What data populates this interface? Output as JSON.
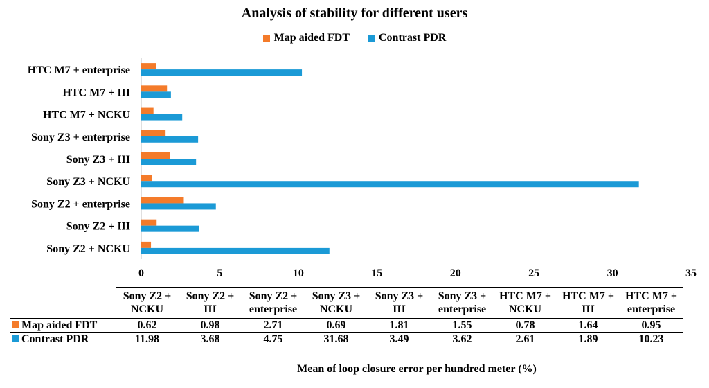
{
  "chart_data": {
    "type": "bar",
    "orientation": "horizontal",
    "title": "Analysis of stability for different users",
    "xlabel": "Mean of loop closure error per  hundred meter (%)",
    "ylabel": "",
    "xlim": [
      0,
      35
    ],
    "xticks": [
      0,
      5,
      10,
      15,
      20,
      25,
      30,
      35
    ],
    "grid": false,
    "legend_position": "top",
    "categories": [
      "Sony Z2 + NCKU",
      "Sony Z2 + III",
      "Sony Z2 + enterprise",
      "Sony Z3 + NCKU",
      "Sony Z3 + III",
      "Sony Z3 + enterprise",
      "HTC M7 + NCKU",
      "HTC M7 + III",
      "HTC M7 + enterprise"
    ],
    "table_headers": [
      [
        "Sony Z2 +",
        "NCKU"
      ],
      [
        "Sony Z2 +",
        "III"
      ],
      [
        "Sony Z2 +",
        "enterprise"
      ],
      [
        "Sony Z3 +",
        "NCKU"
      ],
      [
        "Sony Z3 +",
        "III"
      ],
      [
        "Sony Z3 +",
        "enterprise"
      ],
      [
        "HTC M7 +",
        "NCKU"
      ],
      [
        "HTC M7 +",
        "III"
      ],
      [
        "HTC M7 +",
        "enterprise"
      ]
    ],
    "series": [
      {
        "name": "Map aided FDT",
        "color": "#F47B2A",
        "values": [
          0.62,
          0.98,
          2.71,
          0.69,
          1.81,
          1.55,
          0.78,
          1.64,
          0.95
        ],
        "labels": [
          "0.62",
          "0.98",
          "2.71",
          "0.69",
          "1.81",
          "1.55",
          "0.78",
          "1.64",
          "0.95"
        ]
      },
      {
        "name": "Contrast PDR",
        "color": "#1B9AD6",
        "values": [
          11.98,
          3.68,
          4.75,
          31.68,
          3.49,
          3.62,
          2.61,
          1.89,
          10.23
        ],
        "labels": [
          "11.98",
          "3.68",
          "4.75",
          "31.68",
          "3.49",
          "3.62",
          "2.61",
          "1.89",
          "10.23"
        ]
      }
    ]
  }
}
